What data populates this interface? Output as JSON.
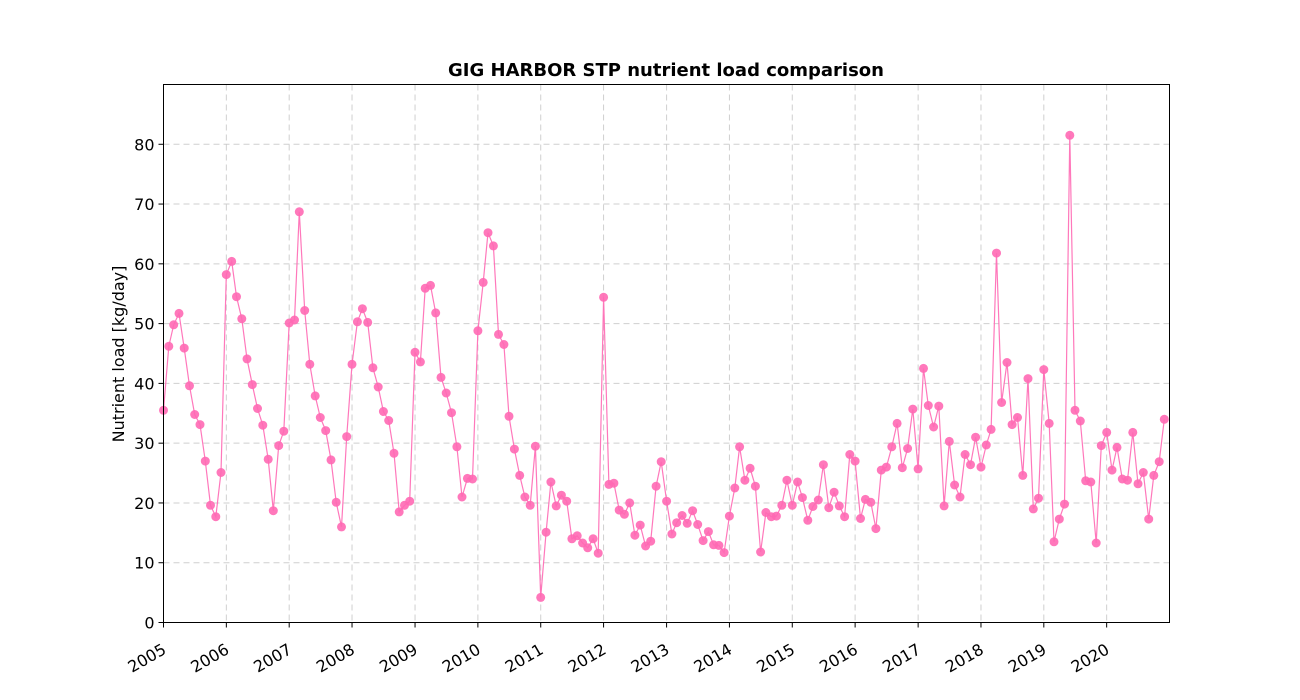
{
  "chart_data": {
    "type": "line",
    "title": "GIG HARBOR STP nutrient load comparison",
    "xlabel": "",
    "ylabel": "Nutrient load [kg/day]",
    "xlim": [
      "2005-01-01",
      "2020-12-31"
    ],
    "ylim": [
      0,
      90
    ],
    "yticks": [
      0,
      10,
      20,
      30,
      40,
      50,
      60,
      70,
      80
    ],
    "xticks": [
      "2005",
      "2006",
      "2007",
      "2008",
      "2009",
      "2010",
      "2011",
      "2012",
      "2013",
      "2014",
      "2015",
      "2016",
      "2017",
      "2018",
      "2019",
      "2020"
    ],
    "grid": true,
    "color": "#ff69b4",
    "series": [
      {
        "x": [
          "2005-01",
          "2005-02",
          "2005-03",
          "2005-04",
          "2005-05",
          "2005-06",
          "2005-07",
          "2005-08",
          "2005-09",
          "2005-10",
          "2005-11",
          "2005-12",
          "2006-01",
          "2006-02",
          "2006-03",
          "2006-04",
          "2006-05",
          "2006-06",
          "2006-07",
          "2006-08",
          "2006-09",
          "2006-10",
          "2006-11",
          "2006-12",
          "2007-01",
          "2007-02",
          "2007-03",
          "2007-04",
          "2007-05",
          "2007-06",
          "2007-07",
          "2007-08",
          "2007-09",
          "2007-10",
          "2007-11",
          "2007-12",
          "2008-01",
          "2008-02",
          "2008-03",
          "2008-04",
          "2008-05",
          "2008-06",
          "2008-07",
          "2008-08",
          "2008-09",
          "2008-10",
          "2008-11",
          "2008-12",
          "2009-01",
          "2009-02",
          "2009-03",
          "2009-04",
          "2009-05",
          "2009-06",
          "2009-07",
          "2009-08",
          "2009-09",
          "2009-10",
          "2009-11",
          "2009-12",
          "2010-01",
          "2010-02",
          "2010-03",
          "2010-04",
          "2010-05",
          "2010-06",
          "2010-07",
          "2010-08",
          "2010-09",
          "2010-10",
          "2010-11",
          "2010-12",
          "2011-01",
          "2011-02",
          "2011-03",
          "2011-04",
          "2011-05",
          "2011-06",
          "2011-07",
          "2011-08",
          "2011-09",
          "2011-10",
          "2011-11",
          "2011-12",
          "2012-01",
          "2012-02",
          "2012-03",
          "2012-04",
          "2012-05",
          "2012-06",
          "2012-07",
          "2012-08",
          "2012-09",
          "2012-10",
          "2012-11",
          "2012-12",
          "2013-01",
          "2013-02",
          "2013-03",
          "2013-04",
          "2013-05",
          "2013-06",
          "2013-07",
          "2013-08",
          "2013-09",
          "2013-10",
          "2013-11",
          "2013-12",
          "2014-01",
          "2014-02",
          "2014-03",
          "2014-04",
          "2014-05",
          "2014-06",
          "2014-07",
          "2014-08",
          "2014-09",
          "2014-10",
          "2014-11",
          "2014-12",
          "2015-01",
          "2015-02",
          "2015-03",
          "2015-04",
          "2015-05",
          "2015-06",
          "2015-07",
          "2015-08",
          "2015-09",
          "2015-10",
          "2015-11",
          "2015-12",
          "2016-01",
          "2016-02",
          "2016-03",
          "2016-04",
          "2016-05",
          "2016-06",
          "2016-07",
          "2016-08",
          "2016-09",
          "2016-10",
          "2016-11",
          "2016-12",
          "2017-01",
          "2017-02",
          "2017-03",
          "2017-04",
          "2017-05",
          "2017-06",
          "2017-07",
          "2017-08",
          "2017-09",
          "2017-10",
          "2017-11",
          "2017-12",
          "2018-01",
          "2018-02",
          "2018-03",
          "2018-04",
          "2018-05",
          "2018-06",
          "2018-07",
          "2018-08",
          "2018-09",
          "2018-10",
          "2018-11",
          "2018-12",
          "2019-01",
          "2019-02",
          "2019-03",
          "2019-04",
          "2019-05",
          "2019-06",
          "2019-07",
          "2019-08",
          "2019-09",
          "2019-10",
          "2019-11",
          "2019-12",
          "2020-01",
          "2020-02",
          "2020-03",
          "2020-04",
          "2020-05",
          "2020-06",
          "2020-07",
          "2020-08",
          "2020-09",
          "2020-10",
          "2020-11",
          "2020-12"
        ],
        "y": [
          35.5,
          46.2,
          49.8,
          51.7,
          45.9,
          39.6,
          34.8,
          33.1,
          27.0,
          19.6,
          17.7,
          25.1,
          58.2,
          60.4,
          54.5,
          50.8,
          44.1,
          39.8,
          35.8,
          33.0,
          27.3,
          18.7,
          29.6,
          32.0,
          50.1,
          50.6,
          68.7,
          52.2,
          43.2,
          37.9,
          34.3,
          32.1,
          27.2,
          20.1,
          16.0,
          31.1,
          43.2,
          50.3,
          52.5,
          50.2,
          42.6,
          39.4,
          35.3,
          33.8,
          28.3,
          18.5,
          19.6,
          20.3,
          45.2,
          43.6,
          55.9,
          56.4,
          51.8,
          41.0,
          38.4,
          35.1,
          29.4,
          21.0,
          24.1,
          24.0,
          48.8,
          56.9,
          65.2,
          63.0,
          48.2,
          46.5,
          34.5,
          29.0,
          24.6,
          21.0,
          19.6,
          29.5,
          4.2,
          15.1,
          23.5,
          19.5,
          21.3,
          20.3,
          14.0,
          14.5,
          13.3,
          12.5,
          14.0,
          11.6,
          54.4,
          23.1,
          23.3,
          18.8,
          18.1,
          20.0,
          14.6,
          16.3,
          12.8,
          13.6,
          22.8,
          26.9,
          20.3,
          14.8,
          16.7,
          17.9,
          16.6,
          18.7,
          16.4,
          13.7,
          15.2,
          13.0,
          12.9,
          11.7,
          17.8,
          22.5,
          29.4,
          23.8,
          25.8,
          22.8,
          11.8,
          18.4,
          17.7,
          17.8,
          19.6,
          23.8,
          19.6,
          23.5,
          20.9,
          17.1,
          19.4,
          20.5,
          26.4,
          19.2,
          21.8,
          19.5,
          17.7,
          28.1,
          27.0,
          17.4,
          20.6,
          20.1,
          15.7,
          25.5,
          26.0,
          29.4,
          33.3,
          25.9,
          29.1,
          35.7,
          25.7,
          42.5,
          36.3,
          32.7,
          36.2,
          19.5,
          30.3,
          23.0,
          21.0,
          28.1,
          26.4,
          31.0,
          26.0,
          29.7,
          32.3,
          61.8,
          36.8,
          43.5,
          33.1,
          34.3,
          24.6,
          40.8,
          19.0,
          20.8,
          42.3,
          33.3,
          13.5,
          17.3,
          19.8,
          81.5,
          35.5,
          33.7,
          23.7,
          23.5,
          13.3,
          29.6,
          31.8,
          25.5,
          29.3,
          24.0,
          23.8,
          31.8,
          23.2,
          25.1,
          17.3,
          24.6,
          26.9,
          34.0
        ]
      }
    ]
  }
}
